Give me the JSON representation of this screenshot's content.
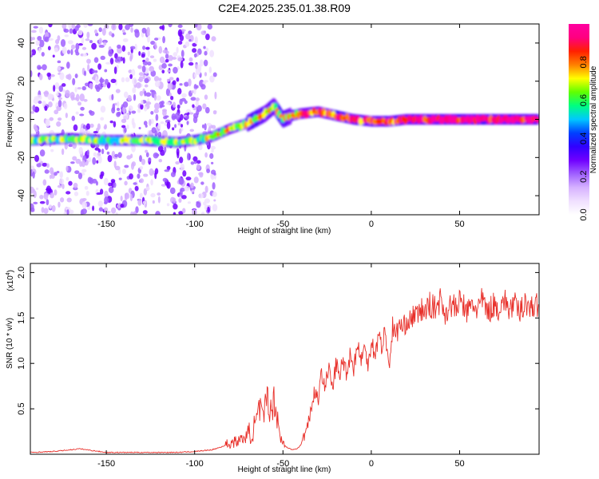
{
  "title": "C2E4.2025.235.01.38.R09",
  "chart_data": [
    {
      "type": "heatmap",
      "name": "spectrogram",
      "title": "C2E4.2025.235.01.38.R09",
      "xlabel": "Height of straight line (km)",
      "ylabel": "Frequency (Hz)",
      "xlim": [
        -193,
        95
      ],
      "ylim": [
        -50,
        50
      ],
      "xticks": [
        -150,
        -100,
        -50,
        0,
        50
      ],
      "yticks": [
        -40,
        -20,
        0,
        20,
        40
      ],
      "colorbar": {
        "label": "Normalized spectral amplitude",
        "range": [
          0.0,
          1.0
        ],
        "ticks": [
          "0.0",
          "0.2",
          "0.4",
          "0.6",
          "0.8"
        ],
        "colors": [
          "#ffffff",
          "#f0e0ff",
          "#d6b2ff",
          "#a060ff",
          "#7000ff",
          "#3000ff",
          "#0040ff",
          "#00c8ff",
          "#00ff80",
          "#60ff00",
          "#ffff00",
          "#ff8000",
          "#ff2000",
          "#ff0080",
          "#ff00a0"
        ]
      },
      "ridge": {
        "x": [
          -193,
          -170,
          -150,
          -130,
          -110,
          -100,
          -90,
          -80,
          -70,
          -60,
          -55,
          -50,
          -45,
          -40,
          -30,
          -20,
          -10,
          0,
          10,
          20,
          40,
          60,
          80,
          95
        ],
        "frequency": [
          -11,
          -10,
          -11,
          -11,
          -12,
          -11,
          -9,
          -5,
          -2,
          3,
          7,
          0,
          2,
          3,
          4,
          2,
          0,
          -1,
          -1,
          0,
          0,
          0,
          0,
          0
        ]
      }
    },
    {
      "type": "line",
      "name": "snr",
      "xlabel": "Height of straight line (km)",
      "ylabel": "SNR (10 * v/v)",
      "y_multiplier": "(x10",
      "y_multiplier_exp": "4",
      "xlim": [
        -193,
        95
      ],
      "ylim": [
        0,
        2.1
      ],
      "xticks": [
        -150,
        -100,
        -50,
        0,
        50
      ],
      "yticks": [
        "0.5",
        "1.0",
        "1.5",
        "2.0"
      ],
      "color": "#e8302a",
      "series": [
        {
          "name": "SNR",
          "x": [
            -193,
            -180,
            -165,
            -150,
            -130,
            -110,
            -100,
            -90,
            -85,
            -80,
            -75,
            -70,
            -66,
            -63,
            -61,
            -59,
            -57,
            -55,
            -53,
            -51,
            -48,
            -45,
            -42,
            -40,
            -38,
            -36,
            -34,
            -32,
            -30,
            -28,
            -26,
            -24,
            -22,
            -20,
            -18,
            -16,
            -14,
            -12,
            -10,
            -8,
            -6,
            -4,
            -2,
            0,
            2,
            4,
            6,
            8,
            10,
            12,
            14,
            16,
            18,
            20,
            22,
            24,
            26,
            28,
            30,
            33,
            36,
            39,
            42,
            45,
            48,
            51,
            54,
            57,
            60,
            63,
            66,
            69,
            72,
            75,
            78,
            81,
            84,
            87,
            90,
            93,
            95
          ],
          "values": [
            0.02,
            0.03,
            0.06,
            0.02,
            0.02,
            0.02,
            0.03,
            0.05,
            0.08,
            0.12,
            0.15,
            0.2,
            0.3,
            0.5,
            0.35,
            0.7,
            0.45,
            0.6,
            0.4,
            0.15,
            0.08,
            0.05,
            0.06,
            0.1,
            0.2,
            0.35,
            0.5,
            0.7,
            0.6,
            0.9,
            0.75,
            0.95,
            0.7,
            1.0,
            0.85,
            1.05,
            0.9,
            1.1,
            0.95,
            1.2,
            1.05,
            1.15,
            1.0,
            1.25,
            1.1,
            1.3,
            1.2,
            1.35,
            0.95,
            1.4,
            1.3,
            1.45,
            1.35,
            1.5,
            1.45,
            1.55,
            1.5,
            1.6,
            1.55,
            1.65,
            1.6,
            1.7,
            1.55,
            1.65,
            1.6,
            1.7,
            1.55,
            1.65,
            1.6,
            1.7,
            1.55,
            1.65,
            1.6,
            1.7,
            1.6,
            1.65,
            1.55,
            1.7,
            1.6,
            1.65,
            1.6
          ]
        }
      ]
    }
  ]
}
